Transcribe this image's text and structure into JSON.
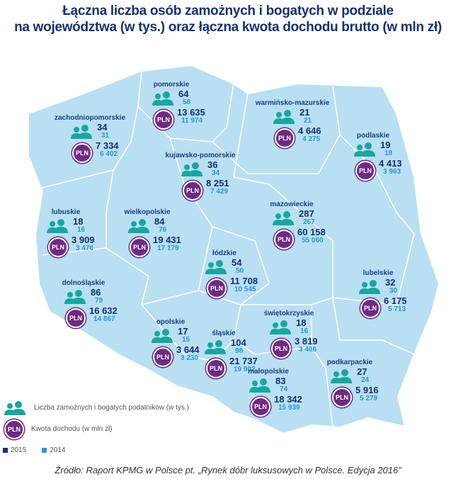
{
  "title_line1": "Łączna liczba osób zamożnych i bogatych w podziale",
  "title_line2": "na województwa (w tys.) oraz łączna kwota dochodu brutto (w mln zł)",
  "pln_badge": "PLN",
  "colors": {
    "map_fill": "#b9dff3",
    "people_icon": "#17a79f",
    "pln_badge": "#6e2a83",
    "year_2015": "#13307a",
    "year_2014": "#2497d3"
  },
  "regions": [
    {
      "name": "pomorskie",
      "people_2015": "64",
      "people_2014": "58",
      "income_2015": "13 635",
      "income_2014": "11 974"
    },
    {
      "name": "zachodniopomorskie",
      "people_2015": "34",
      "people_2014": "31",
      "income_2015": "7 334",
      "income_2014": "6 402"
    },
    {
      "name": "warmińsko-mazurskie",
      "people_2015": "21",
      "people_2014": "21",
      "income_2015": "4 646",
      "income_2014": "4 275"
    },
    {
      "name": "podlaskie",
      "people_2015": "19",
      "people_2014": "18",
      "income_2015": "4 413",
      "income_2014": "3 963"
    },
    {
      "name": "kujawsko-pomorskie",
      "people_2015": "36",
      "people_2014": "34",
      "income_2015": "8 251",
      "income_2014": "7 429"
    },
    {
      "name": "mazowieckie",
      "people_2015": "287",
      "people_2014": "267",
      "income_2015": "60 158",
      "income_2014": "55 060"
    },
    {
      "name": "lubuskie",
      "people_2015": "18",
      "people_2014": "16",
      "income_2015": "3 909",
      "income_2014": "3 476"
    },
    {
      "name": "wielkopolskie",
      "people_2015": "84",
      "people_2014": "76",
      "income_2015": "19 431",
      "income_2014": "17 179"
    },
    {
      "name": "łódzkie",
      "people_2015": "54",
      "people_2014": "50",
      "income_2015": "11 708",
      "income_2014": "10 545"
    },
    {
      "name": "lubelskie",
      "people_2015": "32",
      "people_2014": "30",
      "income_2015": "6 175",
      "income_2014": "5 713"
    },
    {
      "name": "dolnośląskie",
      "people_2015": "86",
      "people_2014": "79",
      "income_2015": "16 632",
      "income_2014": "14 867"
    },
    {
      "name": "świętokrzyskie",
      "people_2015": "18",
      "people_2014": "16",
      "income_2015": "3 819",
      "income_2014": "3 406"
    },
    {
      "name": "opolskie",
      "people_2015": "17",
      "people_2014": "15",
      "income_2015": "3 644",
      "income_2014": "3 230"
    },
    {
      "name": "śląskie",
      "people_2015": "104",
      "people_2014": "98",
      "income_2015": "21 737",
      "income_2014": "19 902"
    },
    {
      "name": "małopolskie",
      "people_2015": "83",
      "people_2014": "74",
      "income_2015": "18 342",
      "income_2014": "15 939"
    },
    {
      "name": "podkarpackie",
      "people_2015": "27",
      "people_2014": "24",
      "income_2015": "5 916",
      "income_2014": "5 279"
    }
  ],
  "legend": {
    "people": "Liczba zamożnych i bogatych podatników (w tys.)",
    "income": "Kwota dochodu (w mln zł)",
    "year_2015": "2015",
    "year_2014": "2014"
  },
  "source": "Źródło: Raport KPMG w Polsce pt. „Rynek dóbr luksusowych w Polsce. Edycja 2016”"
}
